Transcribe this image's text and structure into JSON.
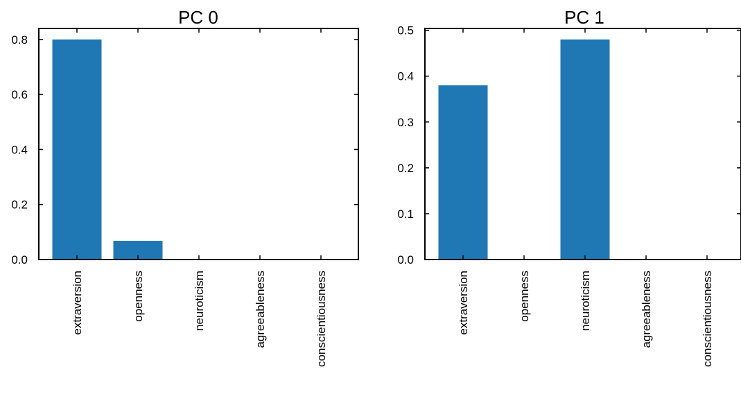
{
  "chart_data": [
    {
      "type": "bar",
      "title": "PC 0",
      "categories": [
        "extraversion",
        "openness",
        "neuroticism",
        "agreeableness",
        "conscientiousness"
      ],
      "values": [
        0.8,
        0.068,
        0,
        0,
        0
      ],
      "xlabel": "",
      "ylabel": "",
      "ylim": [
        0,
        0.84
      ],
      "yticks": [
        0.0,
        0.2,
        0.4,
        0.6,
        0.8
      ],
      "ytick_labels": [
        "0.0",
        "0.2",
        "0.4",
        "0.6",
        "0.8"
      ],
      "grid": false,
      "bar_color": "#1f77b4"
    },
    {
      "type": "bar",
      "title": "PC 1",
      "categories": [
        "extraversion",
        "openness",
        "neuroticism",
        "agreeableness",
        "conscientiousness"
      ],
      "values": [
        0.38,
        0,
        0.48,
        0,
        0
      ],
      "xlabel": "",
      "ylabel": "",
      "ylim": [
        0,
        0.504
      ],
      "yticks": [
        0.0,
        0.1,
        0.2,
        0.3,
        0.4,
        0.5
      ],
      "ytick_labels": [
        "0.0",
        "0.1",
        "0.2",
        "0.3",
        "0.4",
        "0.5"
      ],
      "grid": false,
      "bar_color": "#1f77b4"
    }
  ]
}
